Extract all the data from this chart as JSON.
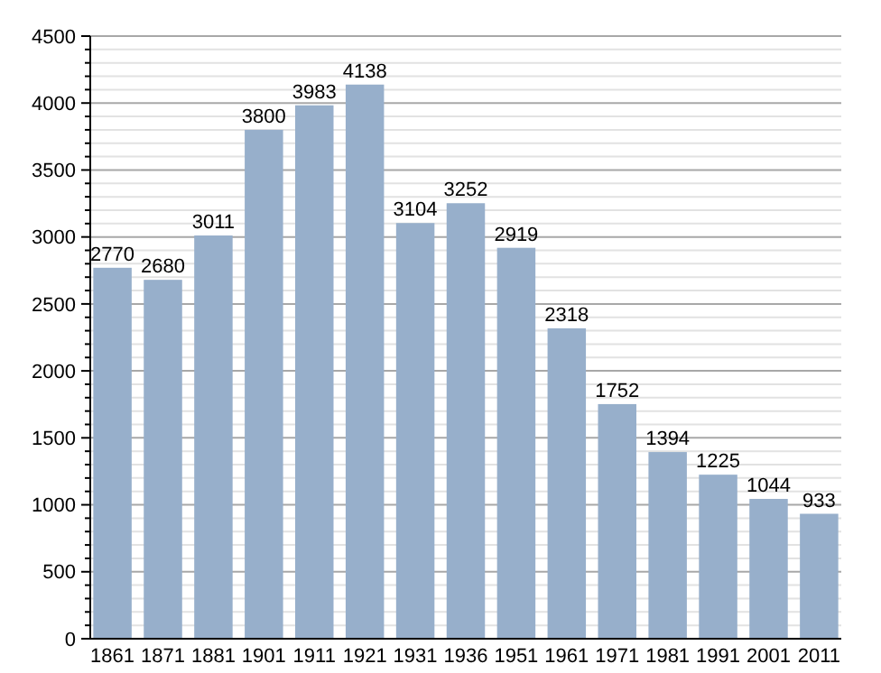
{
  "chart_data": {
    "type": "bar",
    "categories": [
      "1861",
      "1871",
      "1881",
      "1901",
      "1911",
      "1921",
      "1931",
      "1936",
      "1951",
      "1961",
      "1971",
      "1981",
      "1991",
      "2001",
      "2011"
    ],
    "values": [
      2770,
      2680,
      3011,
      3800,
      3983,
      4138,
      3104,
      3252,
      2919,
      2318,
      1752,
      1394,
      1225,
      1044,
      933
    ],
    "color": "#97afcb",
    "data_labels": true,
    "grid": "y",
    "ylim": [
      0,
      4500
    ],
    "yticks": [
      0,
      {
        "value": 100,
        "label": null
      },
      {
        "value": 200,
        "label": null
      },
      {
        "value": 300,
        "label": null
      },
      {
        "value": 400,
        "label": null
      },
      500,
      {
        "value": 600,
        "label": null
      },
      {
        "value": 700,
        "label": null
      },
      {
        "value": 800,
        "label": null
      },
      {
        "value": 900,
        "label": null
      },
      1000,
      {
        "value": 1100,
        "label": null
      },
      {
        "value": 1200,
        "label": null
      },
      {
        "value": 1300,
        "label": null
      },
      {
        "value": 1400,
        "label": null
      },
      1500,
      {
        "value": 1600,
        "label": null
      },
      {
        "value": 1700,
        "label": null
      },
      {
        "value": 1800,
        "label": null
      },
      {
        "value": 1900,
        "label": null
      },
      2000,
      {
        "value": 2100,
        "label": null
      },
      {
        "value": 2200,
        "label": null
      },
      {
        "value": 2300,
        "label": null
      },
      {
        "value": 2400,
        "label": null
      },
      2500,
      {
        "value": 2600,
        "label": null
      },
      {
        "value": 2700,
        "label": null
      },
      {
        "value": 2800,
        "label": null
      },
      {
        "value": 2900,
        "label": null
      },
      3000,
      {
        "value": 3100,
        "label": null
      },
      {
        "value": 3200,
        "label": null
      },
      {
        "value": 3300,
        "label": null
      },
      {
        "value": 3400,
        "label": null
      },
      3500,
      {
        "value": 3600,
        "label": null
      },
      {
        "value": 3700,
        "label": null
      },
      {
        "value": 3800,
        "label": null
      },
      {
        "value": 3900,
        "label": null
      },
      4000,
      {
        "value": 4100,
        "label": null
      },
      {
        "value": 4200,
        "label": null
      },
      {
        "value": 4300,
        "label": null
      },
      {
        "value": 4400,
        "label": null
      },
      4500
    ]
  }
}
